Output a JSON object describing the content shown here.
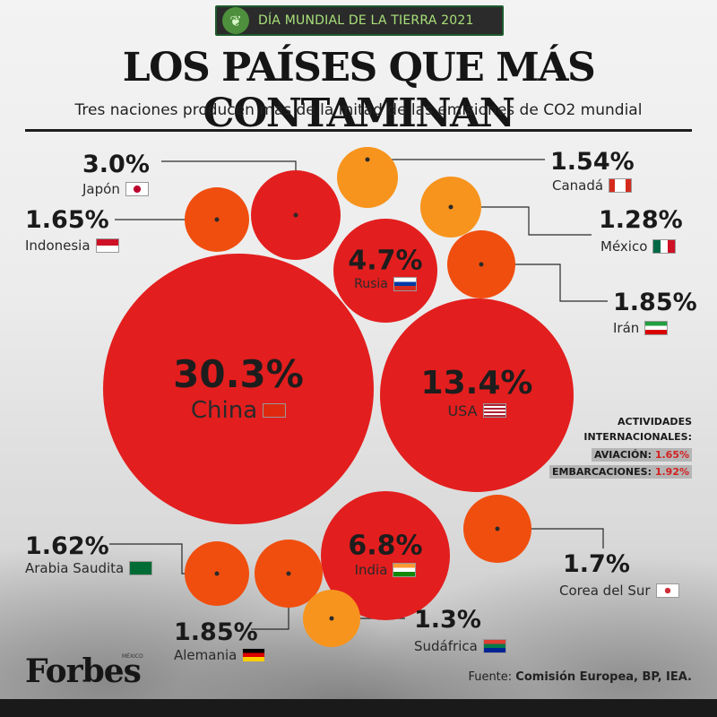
{
  "header": {
    "badge": "DÍA MUNDIAL DE LA TIERRA 2021",
    "title": "LOS PAÍSES QUE MÁS CONTAMINAN",
    "subtitle": "Tres naciones producen más de la mitad de las emisiones de CO2 mundial"
  },
  "chart_data": {
    "type": "bubble",
    "title": "LOS PAÍSES QUE MÁS CONTAMINAN",
    "subtitle": "Tres naciones producen más de la mitad de las emisiones de CO2 mundial",
    "series": [
      {
        "country": "China",
        "value": 30.3,
        "label": "30.3%"
      },
      {
        "country": "USA",
        "value": 13.4,
        "label": "13.4%"
      },
      {
        "country": "India",
        "value": 6.8,
        "label": "6.8%"
      },
      {
        "country": "Rusia",
        "value": 4.7,
        "label": "4.7%"
      },
      {
        "country": "Japón",
        "value": 3.0,
        "label": "3.0%"
      },
      {
        "country": "Alemania",
        "value": 1.85,
        "label": "1.85%"
      },
      {
        "country": "Irán",
        "value": 1.85,
        "label": "1.85%"
      },
      {
        "country": "Corea del Sur",
        "value": 1.7,
        "label": "1.7%"
      },
      {
        "country": "Indonesia",
        "value": 1.65,
        "label": "1.65%"
      },
      {
        "country": "Arabia Saudita",
        "value": 1.62,
        "label": "1.62%"
      },
      {
        "country": "Canadá",
        "value": 1.54,
        "label": "1.54%"
      },
      {
        "country": "Sudáfrica",
        "value": 1.3,
        "label": "1.3%"
      },
      {
        "country": "México",
        "value": 1.28,
        "label": "1.28%"
      }
    ],
    "colors": {
      "large": "#e31e1e",
      "medium": "#f04e0e",
      "small": "#f7941d",
      "label_line": "#2a2a2a"
    }
  },
  "activities": {
    "heading_1": "ACTIVIDADES",
    "heading_2": "INTERNACIONALES:",
    "aviation_label": "AVIACIÓN:",
    "aviation_value": "1.65%",
    "shipping_label": "EMBARCACIONES:",
    "shipping_value": "1.92%"
  },
  "footer": {
    "brand": "Forbes",
    "brand_sub": "MÉXICO",
    "source_prefix": "Fuente:",
    "source_text": "Comisión Europea, BP, IEA."
  },
  "icons": {
    "badge": "leaf-icon"
  }
}
